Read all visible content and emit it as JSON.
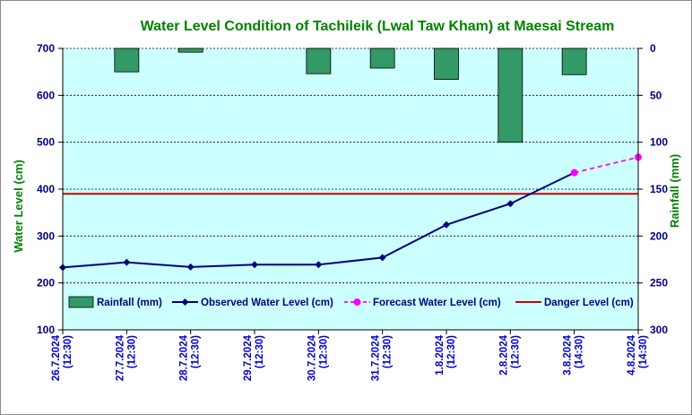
{
  "chart_data": {
    "type": "bar+line",
    "title": "Water Level Condition of Tachileik (Lwal Taw Kham) at Maesai Stream",
    "ylabel_left": "Water Level (cm)",
    "ylabel_right": "Rainfall (mm)",
    "ylim_left": [
      100,
      700
    ],
    "yticks_left": [
      100,
      200,
      300,
      400,
      500,
      600,
      700
    ],
    "ylim_right": [
      0,
      300
    ],
    "yticks_right": [
      0,
      50,
      100,
      150,
      200,
      250,
      300
    ],
    "right_axis_inverted": true,
    "grid": true,
    "legend_position": "bottom-inside",
    "categories": [
      "26.7.2024\n(12:30)",
      "27.7.2024\n(12:30)",
      "28.7.2024\n(12:30)",
      "29.7.2024\n(12:30)",
      "30.7.2024\n(12:30)",
      "31.7.2024\n(12:30)",
      "1.8.2024\n(12:30)",
      "2.8.2024\n(12:30)",
      "3.8.2024\n(14:30)",
      "4.8.2024\n(14:30)"
    ],
    "series": [
      {
        "name": "Rainfall (mm)",
        "type": "bar",
        "axis": "right",
        "color": "#339966",
        "values": [
          null,
          25,
          4,
          null,
          27,
          21,
          33,
          100,
          28,
          null
        ]
      },
      {
        "name": "Observed Water Level (cm)",
        "type": "line",
        "axis": "left",
        "color": "#000080",
        "values": [
          233,
          244,
          234,
          239,
          239,
          254,
          324,
          369,
          435,
          null
        ]
      },
      {
        "name": "Forecast Water Level (cm)",
        "type": "line-dashed",
        "axis": "left",
        "color": "#ff00ff",
        "values": [
          null,
          null,
          null,
          null,
          null,
          null,
          null,
          null,
          435,
          468
        ]
      },
      {
        "name": "Danger Level (cm)",
        "type": "hline",
        "axis": "left",
        "color": "#cc0000",
        "values": [
          390,
          390,
          390,
          390,
          390,
          390,
          390,
          390,
          390,
          390
        ]
      }
    ],
    "colors": {
      "title": "#008000",
      "left_axis": "#008000",
      "right_axis": "#008000",
      "tick_left": "#000080",
      "tick_right": "#000080",
      "x_tick": "#0000cc",
      "plot_bg": "#ccffff",
      "grid": "#000000",
      "legend_text": "#000080"
    }
  }
}
